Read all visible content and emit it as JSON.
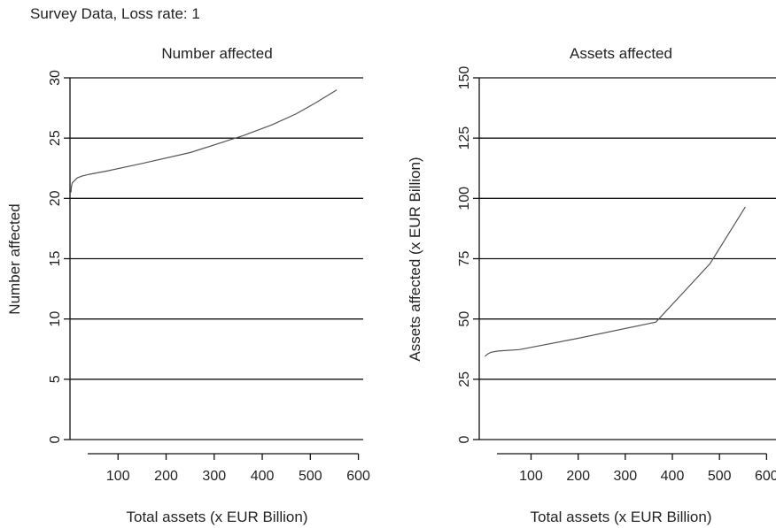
{
  "page": {
    "title": "Survey Data, Loss rate: 1"
  },
  "chart_data": [
    {
      "type": "line",
      "title": "Number affected",
      "xlabel": "Total assets (x EUR Billion)",
      "ylabel": "Number affected",
      "xlim": [
        0,
        610
      ],
      "ylim": [
        -1,
        30.5
      ],
      "xticks": [
        100,
        200,
        300,
        400,
        500,
        600
      ],
      "yticks": [
        0,
        5,
        10,
        15,
        20,
        25,
        30
      ],
      "grid": "horizontal",
      "series": [
        {
          "values": [
            [
              2,
              20.5
            ],
            [
              3,
              21.0
            ],
            [
              5,
              21.3
            ],
            [
              10,
              21.5
            ],
            [
              15,
              21.7
            ],
            [
              25,
              21.85
            ],
            [
              40,
              22.0
            ],
            [
              80,
              22.3
            ],
            [
              150,
              22.9
            ],
            [
              250,
              23.8
            ],
            [
              360,
              25.2
            ],
            [
              420,
              26.1
            ],
            [
              470,
              27.0
            ],
            [
              510,
              27.9
            ],
            [
              555,
              29.0
            ]
          ]
        }
      ]
    },
    {
      "type": "line",
      "title": "Assets affected",
      "xlabel": "Total assets (x EUR Billion)",
      "ylabel": "Assets affected (x EUR Billion)",
      "xlim": [
        -10,
        620
      ],
      "ylim": [
        -5,
        152
      ],
      "xticks": [
        100,
        200,
        300,
        400,
        500,
        600
      ],
      "xtick_labels": [
        "100",
        "200",
        "300",
        "400",
        "500",
        "600"
      ],
      "yticks": [
        0,
        25,
        50,
        75,
        100,
        125,
        150
      ],
      "grid": "horizontal",
      "series": [
        {
          "values": [
            [
              2,
              34.5
            ],
            [
              8,
              35.5
            ],
            [
              15,
              36.2
            ],
            [
              30,
              36.7
            ],
            [
              75,
              37.3
            ],
            [
              200,
              42.0
            ],
            [
              365,
              48.7
            ],
            [
              480,
              73.0
            ],
            [
              555,
              96.5
            ]
          ]
        }
      ]
    }
  ]
}
